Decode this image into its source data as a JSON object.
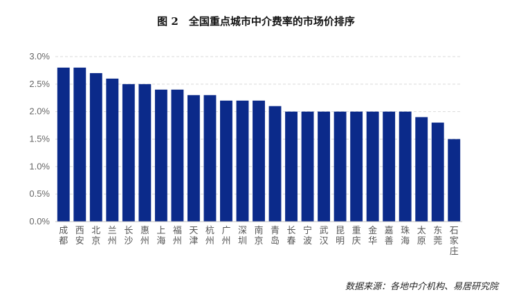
{
  "chart_data": {
    "type": "bar",
    "title": "图 2　全国重点城市中介费率的市场价排序",
    "categories": [
      "成都",
      "西安",
      "北京",
      "兰州",
      "长沙",
      "惠州",
      "上海",
      "福州",
      "天津",
      "杭州",
      "广州",
      "深圳",
      "南京",
      "青岛",
      "长春",
      "宁波",
      "武汉",
      "昆明",
      "重庆",
      "金华",
      "嘉善",
      "珠海",
      "太原",
      "东莞",
      "石家庄"
    ],
    "values": [
      2.8,
      2.8,
      2.7,
      2.6,
      2.5,
      2.5,
      2.4,
      2.4,
      2.3,
      2.3,
      2.2,
      2.2,
      2.2,
      2.1,
      2.0,
      2.0,
      2.0,
      2.0,
      2.0,
      2.0,
      2.0,
      2.0,
      1.9,
      1.8,
      1.5
    ],
    "ylim": [
      0,
      3.0
    ],
    "yticks": [
      "0.0%",
      "0.5%",
      "1.0%",
      "1.5%",
      "2.0%",
      "2.5%",
      "3.0%"
    ],
    "xlabel": "",
    "ylabel": "",
    "grid": true,
    "bar_color": "#0b2a8a",
    "grid_color": "#d9d9d9",
    "source": "数据来源：各地中介机构、易居研究院"
  }
}
